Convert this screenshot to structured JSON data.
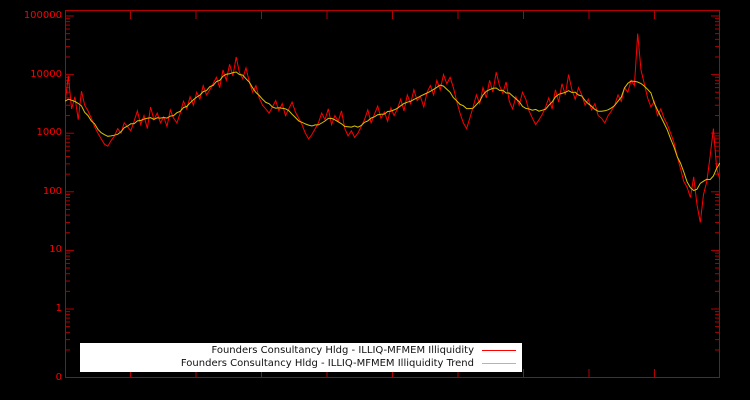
{
  "chart_data": {
    "type": "line",
    "background_color": "#000000",
    "axis_color": "#b40000",
    "tick_label_color": "#ff0000",
    "grid": false,
    "legend_position": "bottom-center",
    "y_axis": {
      "scale": "log",
      "tick_labels": [
        "100000",
        "10000",
        "1000",
        "100",
        "10",
        "1",
        "0"
      ],
      "range_top": 100000,
      "range_bottom": 0.06
    },
    "x_axis": {
      "tick_labels_visible": false
    },
    "series": [
      {
        "name": "Founders Consultancy Hldg - ILLIQ-MFMEM Illiquidity",
        "color": "#ff0000",
        "values": [
          3200,
          9500,
          2600,
          4200,
          1700,
          5200,
          3000,
          2400,
          1800,
          1300,
          1000,
          800,
          650,
          600,
          750,
          900,
          1200,
          1000,
          1500,
          1300,
          1100,
          1600,
          2400,
          1400,
          2000,
          1200,
          2800,
          1700,
          2200,
          1500,
          1900,
          1300,
          2500,
          1800,
          1500,
          2200,
          3500,
          2600,
          4200,
          3000,
          5000,
          3800,
          6500,
          4500,
          5500,
          7000,
          9000,
          6000,
          12000,
          8000,
          15000,
          9500,
          20000,
          11000,
          8500,
          13000,
          7500,
          5000,
          6500,
          4000,
          3000,
          2600,
          2200,
          2800,
          3600,
          2400,
          3200,
          2000,
          2600,
          3400,
          2300,
          1800,
          1400,
          1000,
          800,
          950,
          1200,
          1500,
          2200,
          1700,
          2600,
          1400,
          2000,
          1600,
          2400,
          1200,
          900,
          1100,
          850,
          1000,
          1300,
          1700,
          2500,
          1500,
          2100,
          2900,
          1800,
          2300,
          1600,
          2700,
          2000,
          2600,
          3800,
          2400,
          4500,
          3200,
          5500,
          3600,
          4200,
          2800,
          5000,
          6500,
          4500,
          8000,
          5500,
          10000,
          7000,
          9000,
          6000,
          3500,
          2200,
          1500,
          1200,
          1800,
          2800,
          4500,
          3200,
          6000,
          4000,
          8000,
          5000,
          11000,
          6500,
          4800,
          7500,
          3500,
          2600,
          4200,
          3000,
          5000,
          3800,
          2400,
          1800,
          1400,
          1700,
          2100,
          2800,
          4000,
          2600,
          5500,
          3400,
          7000,
          4500,
          10000,
          5500,
          3800,
          6000,
          4500,
          3000,
          3800,
          2500,
          3200,
          2000,
          1800,
          1500,
          2000,
          2400,
          3000,
          4500,
          3500,
          6000,
          5000,
          8000,
          6500,
          50000,
          12000,
          7000,
          4000,
          2800,
          3500,
          2000,
          2600,
          1800,
          1400,
          1000,
          700,
          400,
          250,
          150,
          120,
          80,
          180,
          60,
          30,
          90,
          150,
          400,
          1200,
          250,
          160
        ]
      },
      {
        "name": "Founders Consultancy Hldg - ILLIQ-MFMEM Illiquidity Trend",
        "color": "#d8c400",
        "derived_from": "series 0",
        "smoothing": "centered moving average of log values",
        "smoothing_window": 9
      }
    ]
  }
}
